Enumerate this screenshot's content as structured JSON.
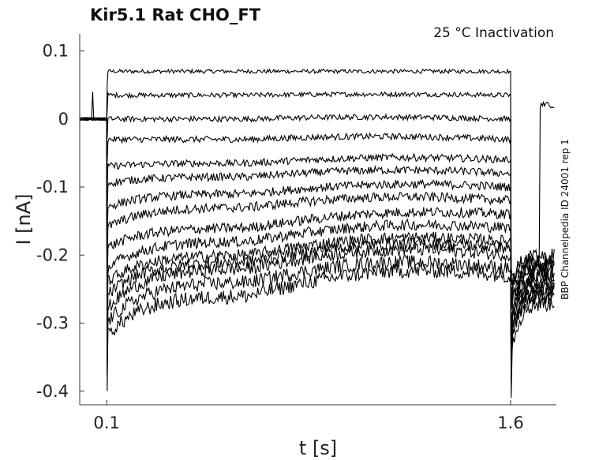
{
  "chart_data": {
    "type": "line",
    "title": "Kir5.1  Rat  CHO_FT",
    "subtitle": "25 °C  Inactivation",
    "side_label": "BBP Channelpedia ID 24001 rep 1",
    "xlabel": "t [s]",
    "ylabel": "I [nA]",
    "xlim": [
      0.0,
      1.77
    ],
    "ylim": [
      -0.42,
      0.125
    ],
    "x_ticks": [
      {
        "value": 0.1,
        "label": "0.1"
      },
      {
        "value": 1.6,
        "label": "1.6"
      }
    ],
    "y_ticks": [
      {
        "value": 0.1,
        "label": "0.1"
      },
      {
        "value": 0.0,
        "label": "0"
      },
      {
        "value": -0.1,
        "label": "-0.1"
      },
      {
        "value": -0.2,
        "label": "-0.2"
      },
      {
        "value": -0.3,
        "label": "-0.3"
      },
      {
        "value": -0.4,
        "label": "-0.4"
      }
    ],
    "grid": false,
    "legend": "none",
    "line_color": "#000000",
    "step_start": 0.1,
    "step_end": 1.6,
    "sweeps": [
      {
        "start": 0.07,
        "peak": 0.07,
        "end": 0.07,
        "tail": -0.2
      },
      {
        "start": 0.035,
        "peak": 0.035,
        "end": 0.035,
        "tail": -0.2
      },
      {
        "start": 0.0,
        "peak": 0.0,
        "end": 0.0,
        "tail": -0.21
      },
      {
        "start": -0.03,
        "peak": -0.03,
        "end": -0.03,
        "tail": -0.21
      },
      {
        "start": -0.07,
        "peak": -0.065,
        "end": -0.06,
        "tail": -0.22
      },
      {
        "start": -0.095,
        "peak": -0.085,
        "end": -0.08,
        "tail": -0.22
      },
      {
        "start": -0.13,
        "peak": -0.11,
        "end": -0.1,
        "tail": -0.23
      },
      {
        "start": -0.16,
        "peak": -0.13,
        "end": -0.12,
        "tail": -0.23
      },
      {
        "start": -0.19,
        "peak": -0.16,
        "end": -0.14,
        "tail": -0.24
      },
      {
        "start": -0.22,
        "peak": -0.18,
        "end": -0.16,
        "tail": -0.24
      },
      {
        "start": -0.24,
        "peak": -0.2,
        "end": -0.18,
        "tail": -0.25
      },
      {
        "start": -0.26,
        "peak": -0.21,
        "end": -0.19,
        "tail": -0.25
      },
      {
        "start": -0.28,
        "peak": -0.22,
        "end": -0.2,
        "tail": -0.26
      },
      {
        "start": -0.3,
        "peak": -0.24,
        "end": -0.22,
        "tail": -0.26
      },
      {
        "start": -0.32,
        "peak": -0.26,
        "end": -0.23,
        "tail": -0.27
      }
    ]
  }
}
